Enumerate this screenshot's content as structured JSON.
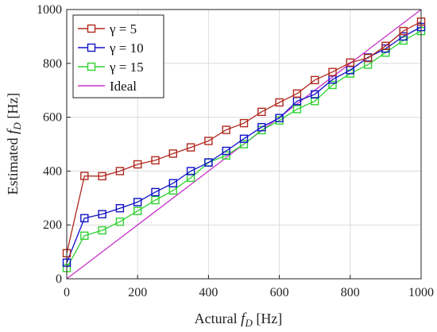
{
  "chart_data": {
    "type": "line",
    "xlabel": {
      "main": "Actural ",
      "italic": "f",
      "sub": "D",
      "unit": " [Hz]"
    },
    "ylabel": {
      "main": "Estimated ",
      "italic": "f",
      "sub": "D",
      "unit": " [Hz]"
    },
    "xlim": [
      0,
      1000
    ],
    "ylim": [
      0,
      1000
    ],
    "x_ticks": [
      0,
      200,
      400,
      600,
      800,
      1000
    ],
    "y_ticks": [
      0,
      200,
      400,
      600,
      800,
      1000
    ],
    "grid": true,
    "legend_position": "top-left",
    "x": [
      0,
      50,
      100,
      150,
      200,
      250,
      300,
      350,
      400,
      450,
      500,
      550,
      600,
      650,
      700,
      750,
      800,
      850,
      900,
      950,
      1000
    ],
    "series": [
      {
        "name": "γ = 5",
        "color": "#b0281e",
        "marker": "square",
        "values": [
          95,
          382,
          381,
          400,
          425,
          440,
          465,
          488,
          512,
          553,
          578,
          620,
          655,
          688,
          738,
          768,
          803,
          820,
          865,
          920,
          955
        ]
      },
      {
        "name": "γ = 10",
        "color": "#1010c8",
        "marker": "square",
        "values": [
          60,
          225,
          240,
          262,
          285,
          322,
          355,
          400,
          432,
          475,
          520,
          563,
          597,
          660,
          685,
          740,
          775,
          822,
          855,
          900,
          935
        ]
      },
      {
        "name": "γ = 15",
        "color": "#2fd12f",
        "marker": "square",
        "values": [
          40,
          160,
          180,
          212,
          252,
          292,
          328,
          375,
          432,
          458,
          500,
          552,
          588,
          630,
          660,
          720,
          762,
          795,
          840,
          885,
          920
        ]
      },
      {
        "name": "Ideal",
        "color": "#c832c8",
        "marker": "none",
        "values": [
          0,
          50,
          100,
          150,
          200,
          250,
          300,
          350,
          400,
          450,
          500,
          550,
          600,
          650,
          700,
          750,
          800,
          850,
          900,
          950,
          1000
        ]
      }
    ]
  }
}
